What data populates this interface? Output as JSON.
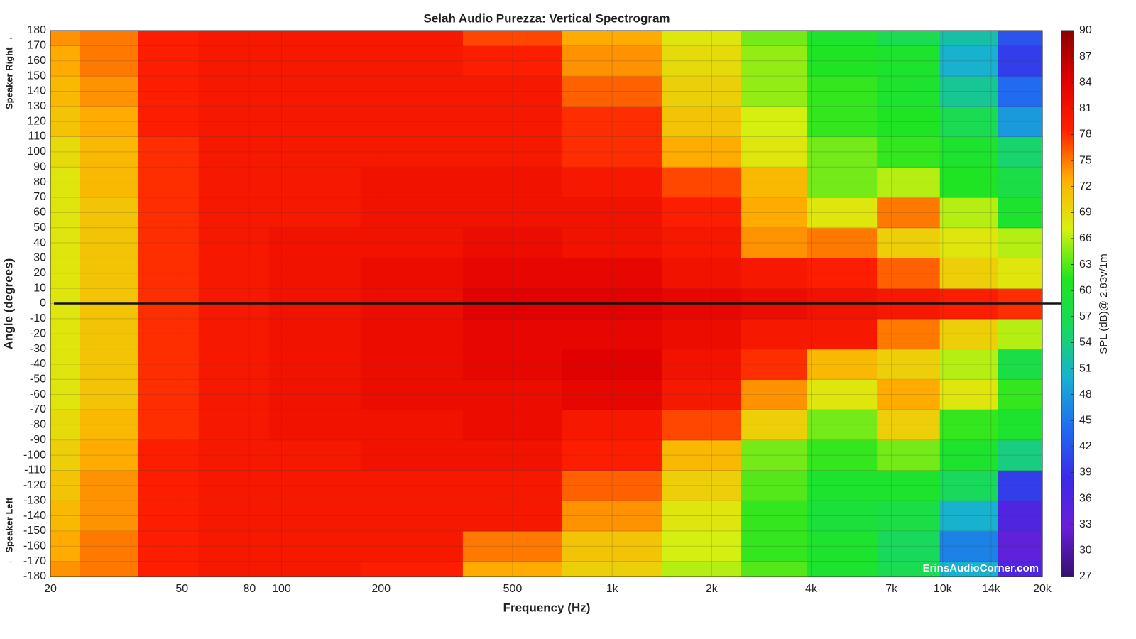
{
  "chart_data": {
    "type": "heatmap",
    "title": "Selah Audio Purezza: Vertical Spectrogram",
    "x_label": "Frequency (Hz)",
    "y_label": "Angle (degrees)",
    "y_label_top": "Speaker Right →",
    "y_label_bottom": "← Speaker Left",
    "colorbar_label": "SPL (dB)@ 2.83v/1m",
    "watermark": "ErinsAudioCorner.com",
    "x_log": true,
    "x": [
      20,
      30,
      45,
      70,
      120,
      250,
      500,
      1000,
      2000,
      3000,
      5000,
      8000,
      12000,
      18000
    ],
    "y": [
      -180,
      -160,
      -140,
      -120,
      -100,
      -80,
      -60,
      -40,
      -20,
      0,
      20,
      40,
      60,
      80,
      100,
      120,
      140,
      160,
      180
    ],
    "z": [
      [
        74,
        75,
        79,
        80,
        80,
        79,
        73,
        70,
        66,
        63,
        60,
        57,
        50,
        36
      ],
      [
        73,
        75,
        79,
        80,
        80,
        80,
        75,
        71,
        67,
        62,
        60,
        56,
        46,
        34
      ],
      [
        72,
        74,
        79,
        80,
        80,
        80,
        80,
        74,
        68,
        62,
        59,
        58,
        50,
        36
      ],
      [
        71,
        74,
        79,
        80,
        80,
        80,
        80,
        76,
        70,
        63,
        60,
        60,
        56,
        40
      ],
      [
        70,
        73,
        79,
        80,
        80,
        81,
        81,
        79,
        72,
        64,
        62,
        64,
        60,
        54
      ],
      [
        69,
        72,
        78,
        80,
        81,
        81,
        82,
        80,
        77,
        70,
        64,
        70,
        62,
        60
      ],
      [
        68,
        71,
        78,
        80,
        81,
        82,
        82,
        83,
        80,
        74,
        68,
        73,
        68,
        62
      ],
      [
        68,
        71,
        78,
        80,
        81,
        82,
        83,
        84,
        81,
        78,
        72,
        70,
        66,
        58
      ],
      [
        68,
        71,
        78,
        80,
        81,
        82,
        83,
        83,
        82,
        80,
        80,
        75,
        70,
        66
      ],
      [
        68,
        71,
        78,
        80,
        81,
        82,
        84,
        84,
        83,
        82,
        81,
        80,
        79,
        78
      ],
      [
        68,
        71,
        78,
        80,
        81,
        82,
        83,
        83,
        81,
        80,
        79,
        76,
        70,
        68
      ],
      [
        68,
        71,
        78,
        80,
        81,
        81,
        82,
        81,
        80,
        74,
        75,
        70,
        68,
        66
      ],
      [
        68,
        71,
        78,
        80,
        80,
        81,
        81,
        81,
        79,
        73,
        68,
        75,
        66,
        60
      ],
      [
        68,
        72,
        78,
        80,
        80,
        81,
        81,
        80,
        77,
        72,
        64,
        66,
        61,
        58
      ],
      [
        69,
        72,
        78,
        80,
        80,
        80,
        80,
        78,
        73,
        68,
        64,
        62,
        60,
        55
      ],
      [
        71,
        73,
        79,
        80,
        80,
        80,
        80,
        78,
        71,
        67,
        62,
        61,
        57,
        48
      ],
      [
        72,
        74,
        79,
        80,
        80,
        80,
        80,
        76,
        70,
        65,
        62,
        60,
        53,
        44
      ],
      [
        73,
        75,
        79,
        80,
        80,
        80,
        79,
        74,
        69,
        65,
        61,
        60,
        50,
        40
      ],
      [
        74,
        75,
        79,
        80,
        80,
        80,
        77,
        73,
        68,
        64,
        60,
        57,
        52,
        42
      ]
    ],
    "xlim": [
      20,
      20000
    ],
    "xticks": [
      20,
      50,
      80,
      100,
      200,
      500,
      {
        "value": 1000,
        "label": "1k"
      },
      {
        "value": 2000,
        "label": "2k"
      },
      {
        "value": 4000,
        "label": "4k"
      },
      {
        "value": 7000,
        "label": "7k"
      },
      {
        "value": 10000,
        "label": "10k"
      },
      {
        "value": 14000,
        "label": "14k"
      },
      {
        "value": 20000,
        "label": "20k"
      }
    ],
    "ylim": [
      -180,
      180
    ],
    "yticks": [
      -180,
      -170,
      -160,
      -150,
      -140,
      -130,
      -120,
      -110,
      -100,
      -90,
      -80,
      -70,
      -60,
      -50,
      -40,
      -30,
      -20,
      -10,
      0,
      10,
      20,
      30,
      40,
      50,
      60,
      70,
      80,
      90,
      100,
      110,
      120,
      130,
      140,
      150,
      160,
      170,
      180
    ],
    "zlim": [
      27,
      90
    ],
    "zticks": [
      27,
      30,
      33,
      36,
      39,
      42,
      45,
      48,
      51,
      54,
      57,
      60,
      63,
      66,
      69,
      72,
      75,
      78,
      81,
      84,
      87,
      90
    ],
    "colormap": [
      "#35106e",
      "#6a1ed8",
      "#3b2be6",
      "#1f6df0",
      "#18b0d0",
      "#18d860",
      "#1fe51f",
      "#d8f010",
      "#ffb000",
      "#ff2000",
      "#e00000",
      "#8a0000"
    ],
    "reference_line": 0,
    "grid": true
  }
}
